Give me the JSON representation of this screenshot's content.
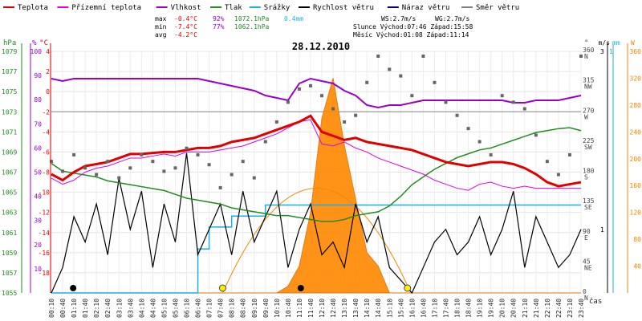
{
  "chart_data": {
    "type": "line",
    "title": "28.12.2010",
    "xlabel": "čas",
    "x_times": [
      "00:10",
      "00:40",
      "01:10",
      "01:40",
      "02:10",
      "02:40",
      "03:10",
      "03:40",
      "04:10",
      "04:40",
      "05:10",
      "05:40",
      "06:10",
      "06:40",
      "07:10",
      "07:40",
      "08:10",
      "08:40",
      "09:10",
      "09:40",
      "10:10",
      "10:40",
      "11:10",
      "11:40",
      "12:10",
      "12:40",
      "13:10",
      "13:40",
      "14:10",
      "14:40",
      "15:10",
      "15:40",
      "16:10",
      "16:40",
      "17:10",
      "17:40",
      "18:10",
      "18:40",
      "19:10",
      "19:40",
      "20:10",
      "20:40",
      "21:10",
      "21:40",
      "22:10",
      "22:40",
      "23:10",
      "23:40"
    ],
    "legend": [
      {
        "label": "Teplota",
        "color": "#e00000"
      },
      {
        "label": "Přízemní teplota",
        "color": "#e000e0"
      },
      {
        "label": "Vlhkost",
        "color": "#9900cc"
      },
      {
        "label": "Tlak",
        "color": "#228b22"
      },
      {
        "label": "Srážky",
        "color": "#1ab0e0"
      },
      {
        "label": "Rychlost větru",
        "color": "#000000"
      },
      {
        "label": "Náraz větru",
        "color": "#000080"
      },
      {
        "label": "Směr větru",
        "color": "#808080"
      }
    ],
    "stats": {
      "max_label": "max",
      "max_temp": "-0.4°C",
      "max_hum": "92%",
      "max_press": "1072.1hPa",
      "rain_total": "0.4mm",
      "min_label": "min",
      "min_temp": "-7.4°C",
      "min_hum": "77%",
      "min_press": "1062.1hPa",
      "avg_label": "avg",
      "avg_temp": "-4.2°C",
      "ws": "WS:2.7m/s",
      "wg": "WG:2.7m/s",
      "sun": "Slunce Východ:07:46  Západ:15:58",
      "moon": "Měsíc  Východ:01:08  Západ:11:14"
    },
    "axes": {
      "hpa": {
        "label": "hPa",
        "ticks": [
          "1079",
          "1077",
          "1075",
          "1073",
          "1071",
          "1069",
          "1067",
          "1065",
          "1063",
          "1061",
          "1059",
          "1057",
          "1055"
        ],
        "range": [
          1055,
          1080
        ]
      },
      "percent": {
        "label": "%",
        "ticks": [
          "100",
          "90",
          "80",
          "70",
          "60",
          "50",
          "40",
          "30",
          "20",
          "10"
        ]
      },
      "celsius": {
        "label": "°C",
        "ticks": [
          "4",
          "2",
          "0",
          "-2",
          "-4",
          "-6",
          "-8",
          "-10",
          "-12",
          "-14",
          "-16",
          "-18"
        ],
        "range": [
          -18,
          6
        ]
      },
      "direction": {
        "label": "°",
        "ticks": [
          "360 N",
          "315 NW",
          "270 W",
          "225 SW",
          "180 S",
          "135 SE",
          "90 E",
          "45 NE",
          "0 N"
        ]
      },
      "wind": {
        "label": "m/s",
        "ticks": [
          "3",
          "1"
        ],
        "range": [
          0,
          3.8
        ]
      },
      "rain": {
        "label": "mm",
        "ticks": [
          "1"
        ],
        "range": [
          0,
          1.1
        ]
      },
      "solar": {
        "label": "W",
        "ticks": [
          "360",
          "320",
          "280",
          "240",
          "200",
          "160",
          "120",
          "80",
          "40"
        ],
        "range": [
          0,
          360
        ]
      }
    },
    "series": [
      {
        "name": "Teplota",
        "unit": "°C",
        "values": [
          -6.2,
          -6.8,
          -6.0,
          -5.4,
          -5.2,
          -5.0,
          -4.6,
          -4.2,
          -4.2,
          -4.1,
          -4.0,
          -4.0,
          -3.8,
          -3.6,
          -3.6,
          -3.4,
          -3.0,
          -2.8,
          -2.6,
          -2.2,
          -1.8,
          -1.4,
          -1.0,
          -0.4,
          -2.0,
          -2.4,
          -2.8,
          -2.6,
          -3.0,
          -3.2,
          -3.4,
          -3.6,
          -3.8,
          -4.2,
          -4.6,
          -5.0,
          -5.2,
          -5.4,
          -5.2,
          -5.0,
          -5.0,
          -5.2,
          -5.6,
          -6.2,
          -7.0,
          -7.4,
          -7.2,
          -7.0
        ]
      },
      {
        "name": "Přízemní teplota",
        "unit": "°C",
        "values": [
          -6.6,
          -7.2,
          -6.8,
          -6.0,
          -5.6,
          -5.4,
          -5.0,
          -4.6,
          -4.6,
          -4.4,
          -4.2,
          -4.4,
          -4.0,
          -4.0,
          -4.0,
          -3.8,
          -3.6,
          -3.4,
          -3.0,
          -2.6,
          -2.2,
          -1.6,
          -1.0,
          -0.8,
          -3.2,
          -3.4,
          -3.0,
          -3.6,
          -4.0,
          -4.6,
          -5.0,
          -5.4,
          -5.8,
          -6.2,
          -6.8,
          -7.2,
          -7.6,
          -7.8,
          -7.2,
          -7.0,
          -7.4,
          -7.6,
          -7.4,
          -7.6,
          -7.6,
          -7.6,
          -7.6,
          -7.6
        ]
      },
      {
        "name": "Vlhkost",
        "unit": "%",
        "values": [
          89,
          88,
          89,
          89,
          89,
          89,
          89,
          89,
          89,
          89,
          89,
          89,
          89,
          89,
          88,
          87,
          86,
          85,
          84,
          82,
          81,
          80,
          87,
          89,
          88,
          87,
          84,
          82,
          78,
          77,
          78,
          78,
          79,
          80,
          80,
          80,
          80,
          80,
          80,
          80,
          80,
          79,
          79,
          80,
          80,
          80,
          81,
          82
        ]
      },
      {
        "name": "Tlak",
        "unit": "hPa",
        "values": [
          1068.4,
          1067.6,
          1067.4,
          1067.2,
          1067.0,
          1066.6,
          1066.4,
          1066.2,
          1066.0,
          1065.8,
          1065.6,
          1065.2,
          1064.8,
          1064.6,
          1064.4,
          1064.2,
          1063.8,
          1063.6,
          1063.4,
          1063.2,
          1063.0,
          1063.0,
          1062.8,
          1062.6,
          1062.4,
          1062.4,
          1062.6,
          1063.0,
          1063.2,
          1063.4,
          1064.0,
          1065.0,
          1066.2,
          1067.0,
          1067.8,
          1068.4,
          1069.0,
          1069.4,
          1069.8,
          1070.0,
          1070.4,
          1070.8,
          1071.2,
          1071.6,
          1071.8,
          1072.0,
          1072.1,
          1071.8
        ]
      },
      {
        "name": "Srážky",
        "unit": "mm",
        "values": [
          0,
          0,
          0,
          0,
          0,
          0,
          0,
          0,
          0,
          0,
          0,
          0,
          0,
          0.2,
          0.3,
          0.3,
          0.35,
          0.35,
          0.35,
          0.4,
          0.4,
          0.4,
          0.4,
          0.4,
          0.4,
          0.4,
          0.4,
          0.4,
          0.4,
          0.4,
          0.4,
          0.4,
          0.4,
          0.4,
          0.4,
          0.4,
          0.4,
          0.4,
          0.4,
          0.4,
          0.4,
          0.4,
          0.4,
          0.4,
          0.4,
          0.4,
          0.4,
          0.4
        ]
      },
      {
        "name": "Rychlost větru",
        "unit": "m/s",
        "values": [
          0,
          0.4,
          1.2,
          0.8,
          1.4,
          0.6,
          1.8,
          1.0,
          1.6,
          0.4,
          1.4,
          0.8,
          2.2,
          0.6,
          1.0,
          1.4,
          0.6,
          1.6,
          0.8,
          1.2,
          1.6,
          0.4,
          1.0,
          1.4,
          0.6,
          0.8,
          0.4,
          1.4,
          0.8,
          1.2,
          0.4,
          0.2,
          0,
          0.4,
          0.8,
          1.0,
          0.6,
          0.8,
          1.2,
          0.6,
          1.0,
          1.6,
          0.4,
          1.2,
          0.8,
          0.4,
          0.6,
          1.0
        ]
      },
      {
        "name": "Směr větru",
        "unit": "°",
        "values": [
          200,
          185,
          210,
          190,
          180,
          200,
          175,
          190,
          210,
          200,
          185,
          190,
          220,
          210,
          195,
          160,
          180,
          200,
          175,
          230,
          260,
          290,
          310,
          315,
          300,
          280,
          260,
          270,
          320,
          360,
          340,
          330,
          300,
          360,
          320,
          290,
          270,
          250,
          230,
          210,
          300,
          290,
          280,
          240,
          200,
          180,
          210,
          360
        ]
      },
      {
        "name": "Sluneční záření",
        "unit": "W",
        "values": [
          0,
          0,
          0,
          0,
          0,
          0,
          0,
          0,
          0,
          0,
          0,
          0,
          0,
          0,
          0,
          0,
          0,
          0,
          0,
          0,
          0,
          10,
          40,
          120,
          260,
          320,
          220,
          140,
          60,
          40,
          0,
          0,
          0,
          0,
          0,
          0,
          0,
          0,
          0,
          0,
          0,
          0,
          0,
          0,
          0,
          0,
          0,
          0
        ]
      }
    ],
    "sun_markers": [
      "07:46",
      "15:58"
    ],
    "moon_markers": [
      "01:08",
      "11:14"
    ],
    "grid": true
  }
}
